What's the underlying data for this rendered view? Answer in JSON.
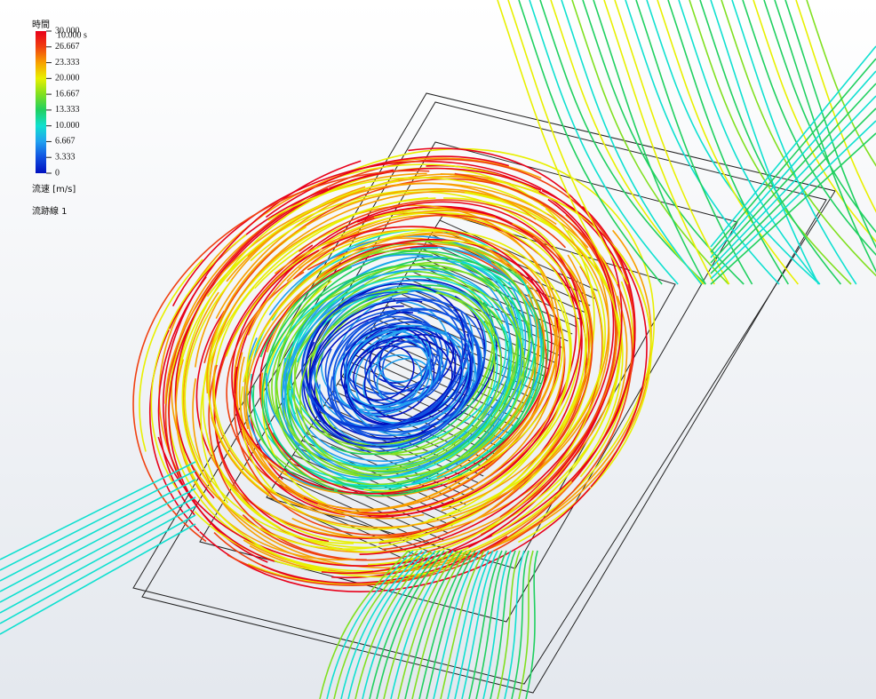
{
  "time": {
    "label": "時間",
    "value": "10.000 s"
  },
  "legend": {
    "title": "流速 [m/s]",
    "ticks": [
      {
        "value": 30,
        "label": "30.000"
      },
      {
        "value": 26.667,
        "label": "26.667"
      },
      {
        "value": 23.333,
        "label": "23.333"
      },
      {
        "value": 20,
        "label": "20.000"
      },
      {
        "value": 16.667,
        "label": "16.667"
      },
      {
        "value": 13.333,
        "label": "13.333"
      },
      {
        "value": 10,
        "label": "10.000"
      },
      {
        "value": 6.667,
        "label": "6.667"
      },
      {
        "value": 3.333,
        "label": "3.333"
      },
      0
    ],
    "colors": [
      "#e8001a",
      "#f04010",
      "#f8a000",
      "#e8f000",
      "#80e020",
      "#20d060",
      "#10e0d0",
      "#20a0f0",
      "#1050e0",
      "#0010c0"
    ]
  },
  "trajectory_label": "流跡線 1"
}
